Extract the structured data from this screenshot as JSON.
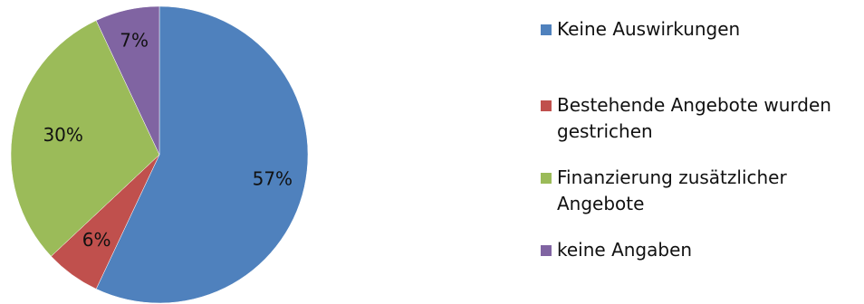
{
  "chart_data": {
    "type": "pie",
    "categories": [
      "Keine Auswirkungen",
      "Bestehende Angebote wurden gestrichen",
      "Finanzierung zusätzlicher Angebote",
      "keine Angaben"
    ],
    "values": [
      57,
      6,
      30,
      7
    ],
    "data_labels": [
      "57%",
      "6%",
      "30%",
      "7%"
    ],
    "colors": [
      "#4F81BD",
      "#C0504D",
      "#9BBB59",
      "#8064A2"
    ],
    "start_angle": "12 o'clock",
    "direction": "clockwise",
    "legend_placement": "right"
  }
}
